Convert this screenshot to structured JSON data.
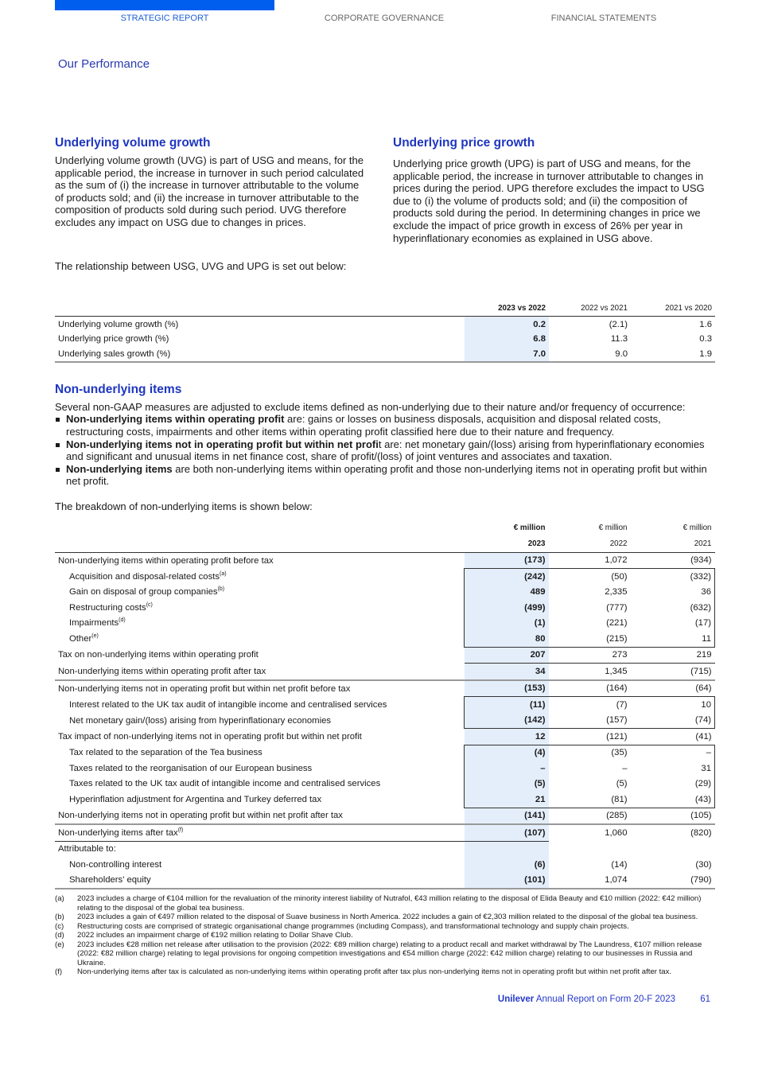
{
  "nav": {
    "tabs": [
      "STRATEGIC REPORT",
      "CORPORATE GOVERNANCE",
      "FINANCIAL STATEMENTS"
    ],
    "active_color": "#005eef"
  },
  "section_title": "Our Performance",
  "uvg": {
    "title": "Underlying volume growth",
    "text": "Underlying volume growth (UVG) is part of USG and means, for the applicable period, the increase in turnover in such period calculated as the sum of (i) the increase in turnover attributable to the volume of products sold; and (ii) the increase in turnover attributable to the composition of products sold during such period. UVG therefore excludes any impact on USG due to changes in prices."
  },
  "upg": {
    "title": "Underlying price growth",
    "text": "Underlying price growth (UPG) is part of USG and means, for the applicable period, the increase in turnover attributable to changes in prices during the period. UPG therefore excludes the impact to USG due to (i) the volume of products sold; and (ii) the composition of products sold during the period. In determining changes in price we exclude the impact of price growth in excess of 26% per year in hyperinflationary economies as explained in USG above."
  },
  "relationship_text": "The relationship between USG, UVG and UPG is set out below:",
  "growth_table": {
    "headers": [
      "2023 vs 2022",
      "2022 vs 2021",
      "2021 vs 2020"
    ],
    "rows": [
      {
        "label": "Underlying volume growth (%)",
        "values": [
          "0.2",
          "(2.1)",
          "1.6"
        ]
      },
      {
        "label": "Underlying price growth (%)",
        "values": [
          "6.8",
          "11.3",
          "0.3"
        ]
      },
      {
        "label": "Underlying sales growth (%)",
        "values": [
          "7.0",
          "9.0",
          "1.9"
        ]
      }
    ]
  },
  "non_underlying": {
    "title": "Non-underlying items",
    "intro": "Several non-GAAP measures are adjusted to exclude items defined as non-underlying due to their nature and/or frequency of occurrence:",
    "bullets": [
      {
        "bold": "Non-underlying items within operating profit",
        "text": " are: gains or losses on business disposals, acquisition and disposal related costs, restructuring costs, impairments and other items within operating profit classified here due to their nature and frequency."
      },
      {
        "bold": "Non-underlying items not in operating profit but within net profi",
        "text": "t are: net monetary gain/(loss) arising from hyperinflationary economies and significant and unusual items in net finance cost, share of profit/(loss) of joint ventures and associates and taxation."
      },
      {
        "bold": "Non-underlying items",
        "text": " are both non-underlying items within operating profit and those non-underlying items not in operating profit but within net profit."
      }
    ],
    "breakdown_text": "The breakdown of non-underlying items is shown below:"
  },
  "breakdown_table": {
    "units": [
      "€ million",
      "€ million",
      "€ million"
    ],
    "years": [
      "2023",
      "2022",
      "2021"
    ],
    "rows": [
      {
        "label": "Non-underlying items within operating profit before tax",
        "values": [
          "(173)",
          "1,072",
          "(934)"
        ]
      },
      {
        "label": "Acquisition and disposal-related costs",
        "note": "(a)",
        "indent": true,
        "box": "top",
        "values": [
          "(242)",
          "(50)",
          "(332)"
        ]
      },
      {
        "label": "Gain on disposal of group companies",
        "note": "(b)",
        "indent": true,
        "box": "mid",
        "values": [
          "489",
          "2,335",
          "36"
        ]
      },
      {
        "label": "Restructuring costs",
        "note": "(c)",
        "indent": true,
        "box": "mid",
        "values": [
          "(499)",
          "(777)",
          "(632)"
        ]
      },
      {
        "label": "Impairments",
        "note": "(d)",
        "indent": true,
        "box": "mid",
        "values": [
          "(1)",
          "(221)",
          "(17)"
        ]
      },
      {
        "label": "Other",
        "note": "(e)",
        "indent": true,
        "box": "bottom",
        "values": [
          "80",
          "(215)",
          "11"
        ]
      },
      {
        "label": "Tax on non-underlying items within operating profit",
        "rule": "values",
        "values": [
          "207",
          "273",
          "219"
        ]
      },
      {
        "label": "Non-underlying items within operating profit after tax",
        "rule": "thick",
        "values": [
          "34",
          "1,345",
          "(715)"
        ]
      },
      {
        "label": "Non-underlying items not in operating profit but within net profit before tax",
        "values": [
          "(153)",
          "(164)",
          "(64)"
        ]
      },
      {
        "label": "Interest related to the UK tax audit of intangible income and centralised services",
        "indent": true,
        "box": "top",
        "values": [
          "(11)",
          "(7)",
          "10"
        ]
      },
      {
        "label": "Net monetary gain/(loss) arising from hyperinflationary economies",
        "indent": true,
        "box": "bottom",
        "values": [
          "(142)",
          "(157)",
          "(74)"
        ]
      },
      {
        "label": "Tax impact of non-underlying items not in operating profit but within net profit",
        "values": [
          "12",
          "(121)",
          "(41)"
        ]
      },
      {
        "label": "Tax related to the separation of the Tea business",
        "indent": true,
        "box": "top",
        "values": [
          "(4)",
          "(35)",
          "–"
        ]
      },
      {
        "label": "Taxes related to the reorganisation of our European business",
        "indent": true,
        "box": "mid",
        "values": [
          "–",
          "–",
          "31"
        ]
      },
      {
        "label": "Taxes related to the UK tax audit of intangible income and centralised services",
        "indent": true,
        "box": "mid",
        "values": [
          "(5)",
          "(5)",
          "(29)"
        ]
      },
      {
        "label": "Hyperinflation adjustment for Argentina and Turkey deferred tax",
        "indent": true,
        "box": "bottom",
        "values": [
          "21",
          "(81)",
          "(43)"
        ]
      },
      {
        "label": "Non-underlying items not in operating profit but within net profit after tax",
        "rule": "thick",
        "values": [
          "(141)",
          "(285)",
          "(105)"
        ]
      },
      {
        "label": "Non-underlying items after tax",
        "note": "(f)",
        "rule": "left",
        "values": [
          "(107)",
          "1,060",
          "(820)"
        ]
      },
      {
        "label": "Attributable to:",
        "values": [
          "",
          "",
          ""
        ]
      },
      {
        "label": "Non-controlling interest",
        "indent": true,
        "values": [
          "(6)",
          "(14)",
          "(30)"
        ]
      },
      {
        "label": "Shareholders' equity",
        "indent": true,
        "rule": "thick",
        "values": [
          "(101)",
          "1,074",
          "(790)"
        ]
      }
    ]
  },
  "footnotes": [
    {
      "key": "(a)",
      "text": "2023 includes a charge of €104 million for the revaluation of the minority interest liability of Nutrafol, €43 million relating to the disposal of Elida Beauty and €10 million (2022: €42 million) relating to the disposal of the global tea business."
    },
    {
      "key": "(b)",
      "text": "2023 includes a gain of €497 million related to the disposal of Suave business in North America. 2022 includes a gain of €2,303 million related to the disposal of the global tea business."
    },
    {
      "key": "(c)",
      "text": "Restructuring costs are comprised of strategic organisational change programmes (including Compass), and transformational technology and supply chain projects."
    },
    {
      "key": "(d)",
      "text": "2022 includes an impairment charge of €192 million relating to Dollar Shave Club."
    },
    {
      "key": "(e)",
      "text": "2023 includes €28 million net release after utilisation to the provision (2022: €89 million charge) relating to a product recall and market withdrawal by The Laundress, €107 million release (2022: €82 million charge) relating to legal provisions for ongoing competition investigations and €54 million charge (2022: €42 million charge) relating to our businesses in Russia and Ukraine."
    },
    {
      "key": "(f)",
      "text": "Non-underlying items after tax is calculated as non-underlying items within operating profit after tax plus non-underlying items not in operating profit but within net profit after tax."
    }
  ],
  "footer": {
    "brand": "Unilever",
    "title": "Annual Report on Form 20-F 2023",
    "page": "61"
  }
}
